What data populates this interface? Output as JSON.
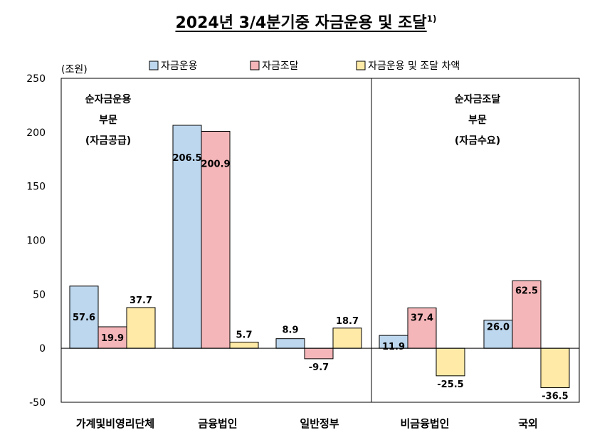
{
  "header": {
    "title": "2024년 3/4분기중 자금운용 및 조달",
    "footnote_mark": "1)"
  },
  "chart_data": {
    "type": "bar",
    "unit_label": "(조원)",
    "categories": [
      "가계및비영리단체",
      "금융법인",
      "일반정부",
      "비금융법인",
      "국외"
    ],
    "series": [
      {
        "name": "자금운용",
        "values": [
          57.6,
          206.5,
          8.9,
          11.9,
          26.0
        ],
        "labels": [
          "57.6",
          "206.5",
          "8.9",
          "11.9",
          "26.0"
        ],
        "color": "#bdd7ee"
      },
      {
        "name": "자금조달",
        "values": [
          19.9,
          200.9,
          -9.7,
          37.4,
          62.5
        ],
        "labels": [
          "19.9",
          "200.9",
          "-9.7",
          "37.4",
          "62.5"
        ],
        "color": "#f4b6b9"
      },
      {
        "name": "자금운용 및 조달 차액",
        "values": [
          37.7,
          5.7,
          18.7,
          -25.5,
          -36.5
        ],
        "labels": [
          "37.7",
          "5.7",
          "18.7",
          "-25.5",
          "-36.5"
        ],
        "color": "#ffeaa7"
      }
    ],
    "ylim": [
      -50,
      250
    ],
    "yticks": [
      -50,
      0,
      50,
      100,
      150,
      200,
      250
    ],
    "annotations": {
      "left": [
        "순자금운용",
        "부문",
        "(자금공급)"
      ],
      "right": [
        "순자금조달",
        "부문",
        "(자금수요)"
      ]
    },
    "legend_position": "top"
  }
}
